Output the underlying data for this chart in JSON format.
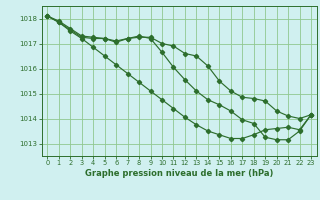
{
  "line1": {
    "x": [
      0,
      1,
      2,
      3,
      4,
      5,
      6,
      7,
      8,
      9,
      10,
      11,
      12,
      13,
      14,
      15,
      16,
      17,
      18,
      19,
      20,
      21,
      22,
      23
    ],
    "y": [
      1018.1,
      1017.9,
      1017.6,
      1017.3,
      1017.25,
      1017.2,
      1017.05,
      1017.2,
      1017.25,
      1017.25,
      1017.0,
      1016.9,
      1016.6,
      1016.5,
      1016.1,
      1015.5,
      1015.1,
      1014.85,
      1014.8,
      1014.7,
      1014.3,
      1014.1,
      1014.0,
      1014.15
    ]
  },
  "line2": {
    "x": [
      0,
      1,
      2,
      3,
      4,
      5,
      6,
      7,
      8,
      9,
      10,
      11,
      12,
      13,
      14,
      15,
      16,
      17,
      18,
      19,
      20,
      21,
      22,
      23
    ],
    "y": [
      1018.1,
      1017.85,
      1017.55,
      1017.25,
      1017.2,
      1017.2,
      1017.1,
      1017.2,
      1017.3,
      1017.2,
      1016.65,
      1016.05,
      1015.55,
      1015.1,
      1014.75,
      1014.55,
      1014.3,
      1013.95,
      1013.8,
      1013.25,
      1013.15,
      1013.15,
      1013.5,
      1014.15
    ]
  },
  "line3": {
    "x": [
      0,
      1,
      2,
      3,
      4,
      5,
      6,
      7,
      8,
      9,
      10,
      11,
      12,
      13,
      14,
      15,
      16,
      17,
      18,
      19,
      20,
      21,
      22,
      23
    ],
    "y": [
      1018.1,
      1017.85,
      1017.5,
      1017.2,
      1016.85,
      1016.5,
      1016.15,
      1015.8,
      1015.45,
      1015.1,
      1014.75,
      1014.4,
      1014.05,
      1013.75,
      1013.5,
      1013.35,
      1013.2,
      1013.2,
      1013.35,
      1013.55,
      1013.6,
      1013.65,
      1013.55,
      1014.15
    ]
  },
  "bg_color": "#d0f0f0",
  "grid_color": "#90c890",
  "line_color": "#2d6e2d",
  "xlabel": "Graphe pression niveau de la mer (hPa)",
  "ylim": [
    1012.5,
    1018.5
  ],
  "xlim": [
    -0.5,
    23.5
  ],
  "yticks": [
    1013,
    1014,
    1015,
    1016,
    1017,
    1018
  ],
  "xticks": [
    0,
    1,
    2,
    3,
    4,
    5,
    6,
    7,
    8,
    9,
    10,
    11,
    12,
    13,
    14,
    15,
    16,
    17,
    18,
    19,
    20,
    21,
    22,
    23
  ]
}
